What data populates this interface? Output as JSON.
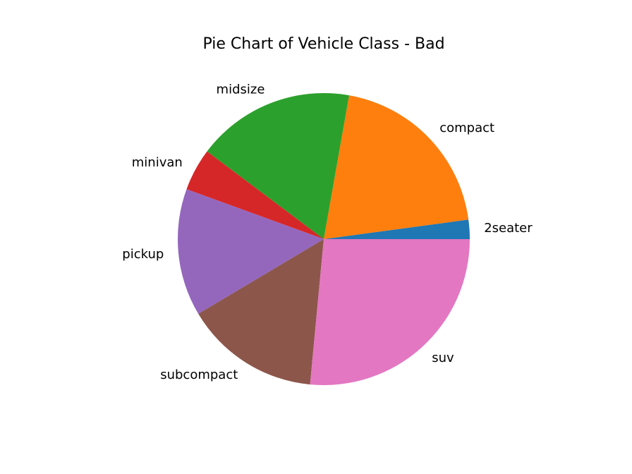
{
  "chart_data": {
    "type": "pie",
    "title": "Pie Chart of Vehicle Class - Bad",
    "categories": [
      "2seater",
      "compact",
      "midsize",
      "minivan",
      "pickup",
      "subcompact",
      "suv"
    ],
    "values": [
      5,
      47,
      41,
      11,
      33,
      35,
      62
    ],
    "colors": [
      "#1f77b4",
      "#ff7f0e",
      "#2ca02c",
      "#d62728",
      "#9467bd",
      "#8c564b",
      "#e377c2"
    ],
    "start_angle_deg": 0,
    "direction": "counterclockwise",
    "legend": "none"
  }
}
